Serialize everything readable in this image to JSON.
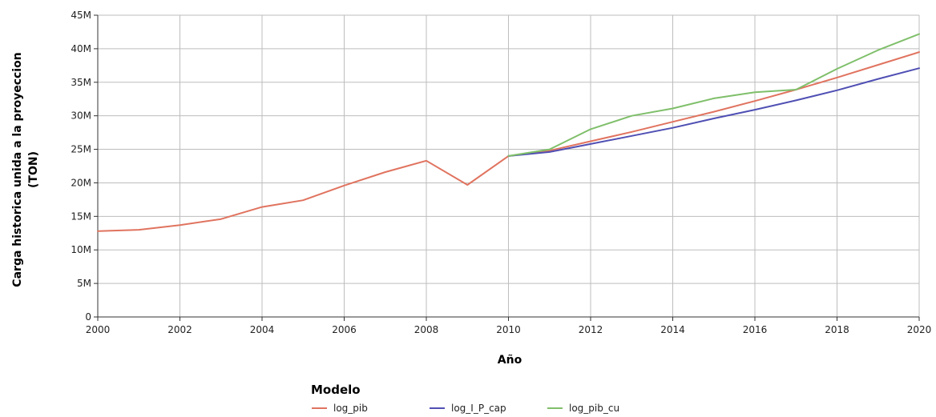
{
  "chart_data": {
    "type": "line",
    "title": "",
    "xlabel": "Año",
    "ylabel_line1": "Carga historica unida a la proyeccion",
    "ylabel_line2": "(TON)",
    "xlim": [
      2000,
      2020
    ],
    "ylim": [
      0,
      45000000
    ],
    "x_ticks": [
      2000,
      2002,
      2004,
      2006,
      2008,
      2010,
      2012,
      2014,
      2016,
      2018,
      2020
    ],
    "x_tick_labels": [
      "2000",
      "2002",
      "2004",
      "2006",
      "2008",
      "2010",
      "2012",
      "2014",
      "2016",
      "2018",
      "2020"
    ],
    "y_ticks": [
      0,
      5000000,
      10000000,
      15000000,
      20000000,
      25000000,
      30000000,
      35000000,
      40000000,
      45000000
    ],
    "y_tick_labels": [
      "0",
      "5M",
      "10M",
      "15M",
      "20M",
      "25M",
      "30M",
      "35M",
      "40M",
      "45M"
    ],
    "grid": true,
    "legend_title": "Modelo",
    "legend_position": "bottom",
    "series": [
      {
        "name": "log_pib",
        "color": "#e0735f",
        "points": [
          [
            2000,
            12800000
          ],
          [
            2001,
            13000000
          ],
          [
            2002,
            13700000
          ],
          [
            2003,
            14600000
          ],
          [
            2004,
            16400000
          ],
          [
            2005,
            17400000
          ],
          [
            2006,
            19600000
          ],
          [
            2007,
            21600000
          ],
          [
            2008,
            23300000
          ],
          [
            2009,
            19700000
          ],
          [
            2010,
            24000000
          ],
          [
            2011,
            24800000
          ],
          [
            2012,
            26200000
          ],
          [
            2013,
            27600000
          ],
          [
            2014,
            29100000
          ],
          [
            2015,
            30600000
          ],
          [
            2016,
            32200000
          ],
          [
            2017,
            33900000
          ],
          [
            2018,
            35700000
          ],
          [
            2019,
            37600000
          ],
          [
            2020,
            39500000
          ]
        ]
      },
      {
        "name": "log_I_P_cap",
        "color": "#4f4fb4",
        "points": [
          [
            2010,
            24000000
          ],
          [
            2011,
            24600000
          ],
          [
            2012,
            25800000
          ],
          [
            2013,
            27000000
          ],
          [
            2014,
            28200000
          ],
          [
            2015,
            29600000
          ],
          [
            2016,
            30900000
          ],
          [
            2017,
            32300000
          ],
          [
            2018,
            33800000
          ],
          [
            2019,
            35500000
          ],
          [
            2020,
            37100000
          ]
        ]
      },
      {
        "name": "log_pib_cu",
        "color": "#7fbf6a",
        "points": [
          [
            2010,
            24000000
          ],
          [
            2011,
            25000000
          ],
          [
            2012,
            28000000
          ],
          [
            2013,
            30000000
          ],
          [
            2014,
            31100000
          ],
          [
            2015,
            32600000
          ],
          [
            2016,
            33500000
          ],
          [
            2017,
            33900000
          ],
          [
            2018,
            37000000
          ],
          [
            2019,
            39800000
          ],
          [
            2020,
            42200000
          ]
        ]
      }
    ]
  }
}
